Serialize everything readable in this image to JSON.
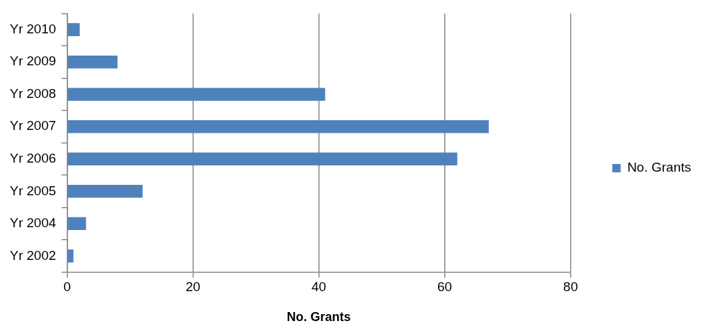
{
  "chart_data": {
    "type": "bar",
    "orientation": "horizontal",
    "xlabel": "No. Grants",
    "categories": [
      "Yr 2010",
      "Yr 2009",
      "Yr 2008",
      "Yr 2007",
      "Yr 2006",
      "Yr 2005",
      "Yr 2004",
      "Yr 2002"
    ],
    "series": [
      {
        "name": "No. Grants",
        "color": "#4f81bd",
        "values": [
          2,
          8,
          41,
          67,
          62,
          12,
          3,
          1
        ]
      }
    ],
    "xlim": [
      0,
      80
    ],
    "xticks": [
      0,
      20,
      40,
      60,
      80
    ],
    "grid": "x",
    "legend": "right"
  }
}
